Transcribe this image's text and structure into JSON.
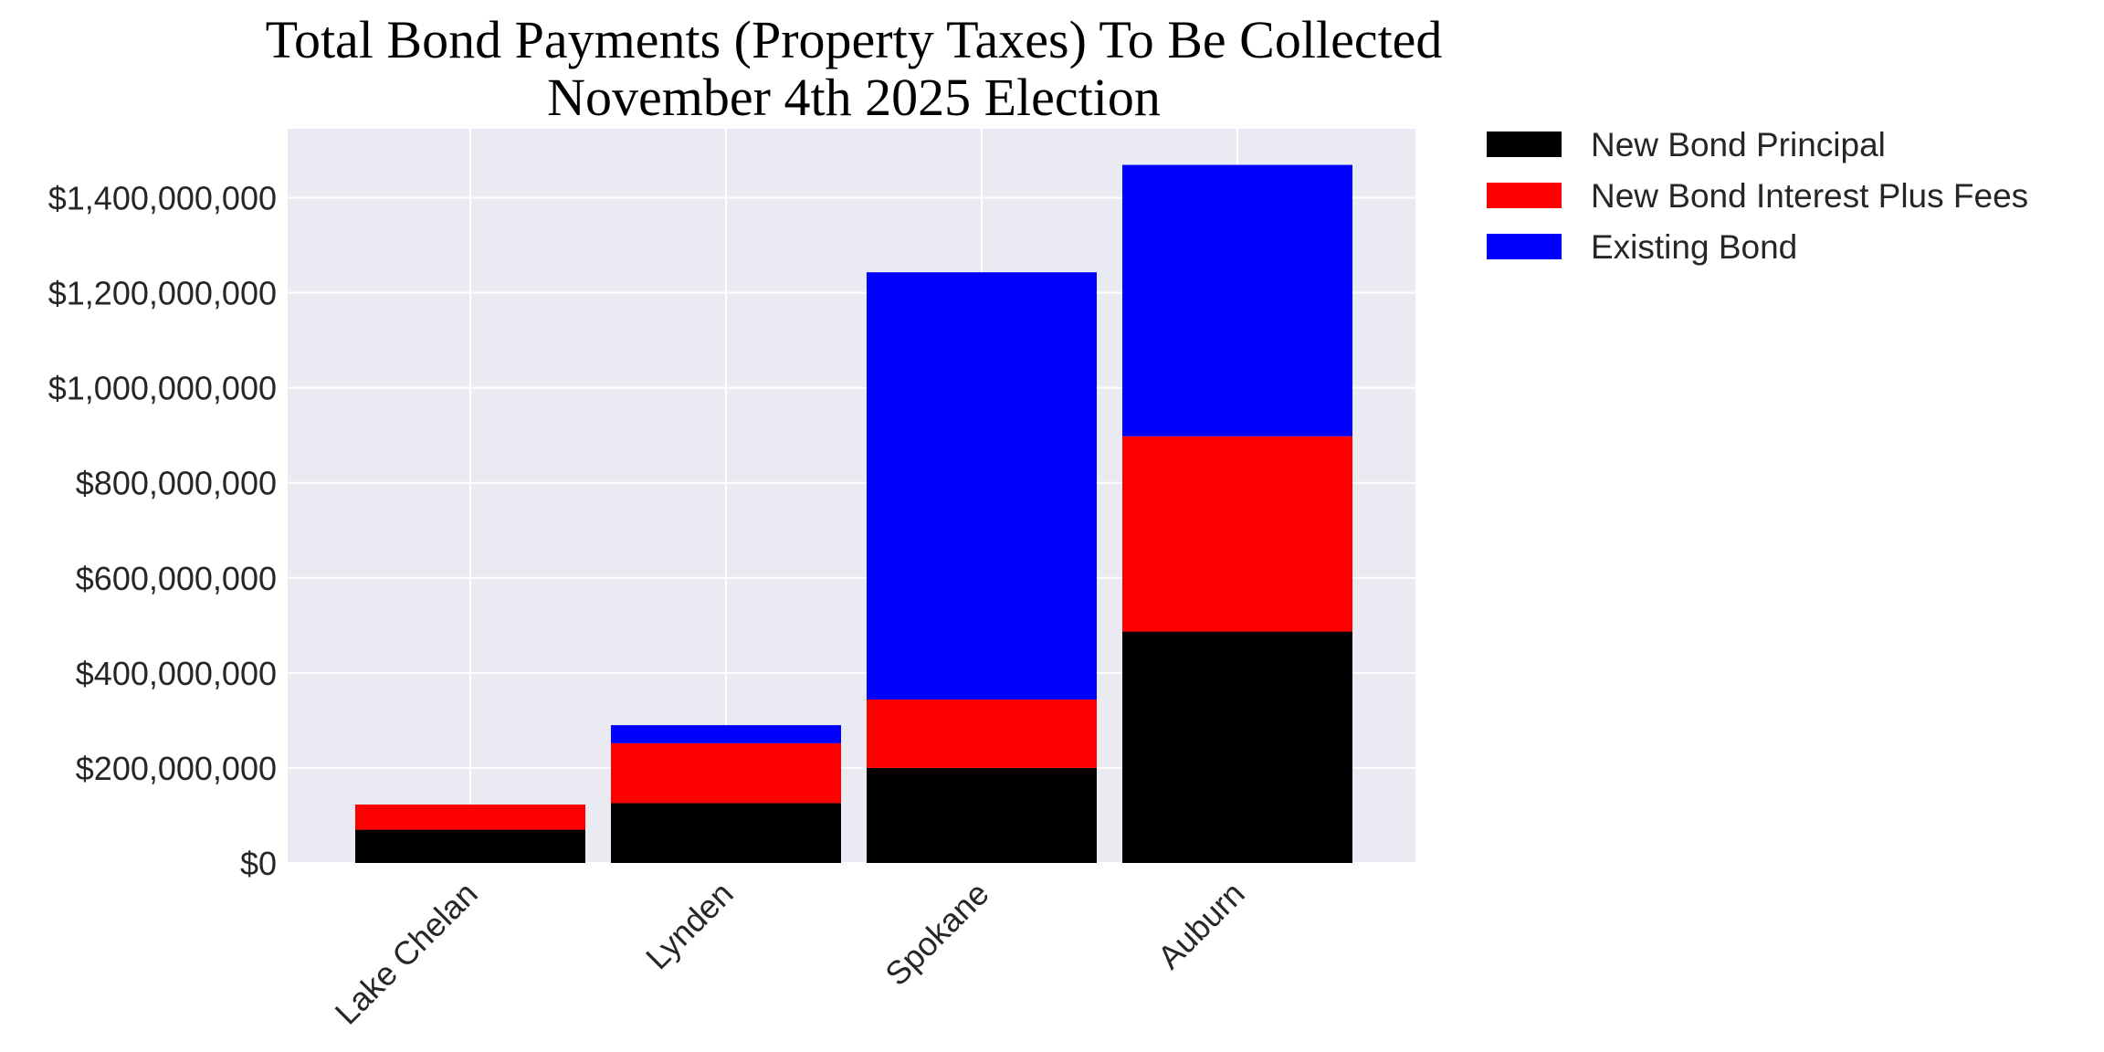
{
  "chart_data": {
    "type": "bar",
    "stacked": true,
    "title": "Total Bond Payments (Property Taxes) To Be Collected",
    "subtitle": "November 4th 2025 Election",
    "xlabel": "",
    "ylabel": "",
    "categories": [
      "Lake Chelan",
      "Lynden",
      "Spokane",
      "Auburn"
    ],
    "series": [
      {
        "name": "New Bond Principal",
        "color": "#000000",
        "values": [
          70000000,
          126000000,
          200000000,
          487000000
        ]
      },
      {
        "name": "New Bond Interest Plus Fees",
        "color": "#ff0000",
        "values": [
          53000000,
          126000000,
          144000000,
          411000000
        ]
      },
      {
        "name": "Existing Bond",
        "color": "#0000ff",
        "values": [
          0,
          38000000,
          899000000,
          571000000
        ]
      }
    ],
    "ylim": [
      0,
      1545000000
    ],
    "yticks": [
      0,
      200000000,
      400000000,
      600000000,
      800000000,
      1000000000,
      1200000000,
      1400000000
    ],
    "ytick_labels": [
      "$0",
      "$200,000,000",
      "$400,000,000",
      "$600,000,000",
      "$800,000,000",
      "$1,000,000,000",
      "$1,200,000,000",
      "$1,400,000,000"
    ],
    "grid": true,
    "legend_position": "outside-top-right",
    "colors": {
      "plot_background": "#eaeaf2",
      "grid": "#ffffff"
    }
  }
}
